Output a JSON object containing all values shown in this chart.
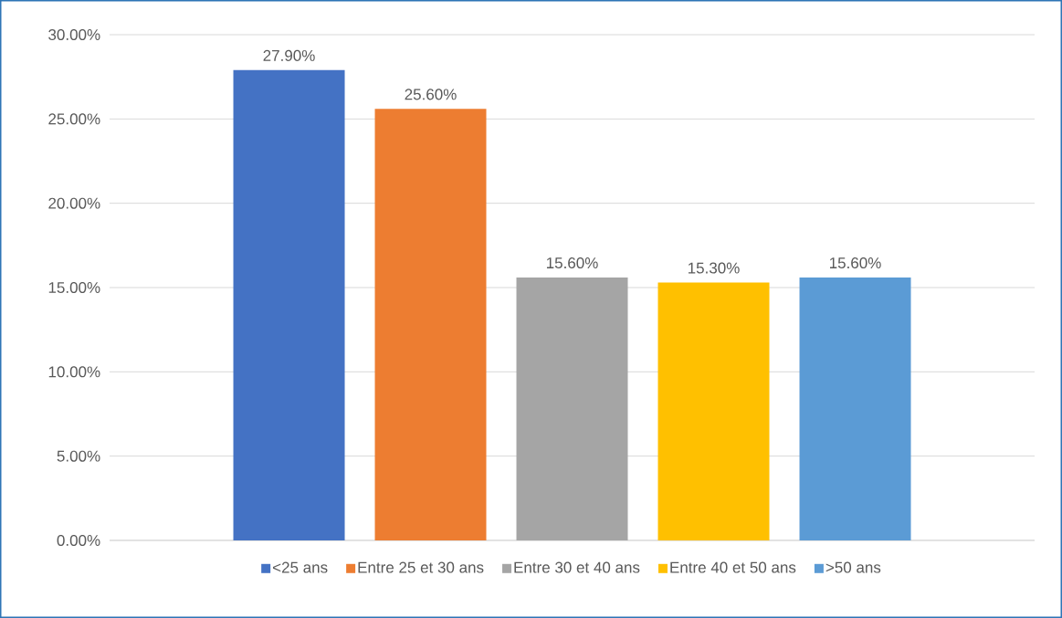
{
  "chart_data": {
    "type": "bar",
    "categories": [
      null
    ],
    "series": [
      {
        "name": "<25 ans",
        "color": "#4472c4",
        "values": [
          27.9
        ],
        "value_labels": [
          "27.90%"
        ]
      },
      {
        "name": "Entre 25 et 30 ans",
        "color": "#ed7d31",
        "values": [
          25.6
        ],
        "value_labels": [
          "25.60%"
        ]
      },
      {
        "name": "Entre 30 et 40 ans",
        "color": "#a5a5a5",
        "values": [
          15.6
        ],
        "value_labels": [
          "15.60%"
        ]
      },
      {
        "name": "Entre 40 et 50 ans",
        "color": "#ffc000",
        "values": [
          15.3
        ],
        "value_labels": [
          "15.30%"
        ]
      },
      {
        "name": ">50 ans",
        "color": "#5b9bd5",
        "values": [
          15.6
        ],
        "value_labels": [
          "15.60%"
        ]
      }
    ],
    "ylim": [
      0,
      30
    ],
    "yticks": [
      {
        "value": 0,
        "label": "0.00%"
      },
      {
        "value": 5,
        "label": "5.00%"
      },
      {
        "value": 10,
        "label": "10.00%"
      },
      {
        "value": 15,
        "label": "15.00%"
      },
      {
        "value": 20,
        "label": "20.00%"
      },
      {
        "value": 25,
        "label": "25.00%"
      },
      {
        "value": 30,
        "label": "30.00%"
      }
    ],
    "grid": "y",
    "legend": "bottom"
  }
}
